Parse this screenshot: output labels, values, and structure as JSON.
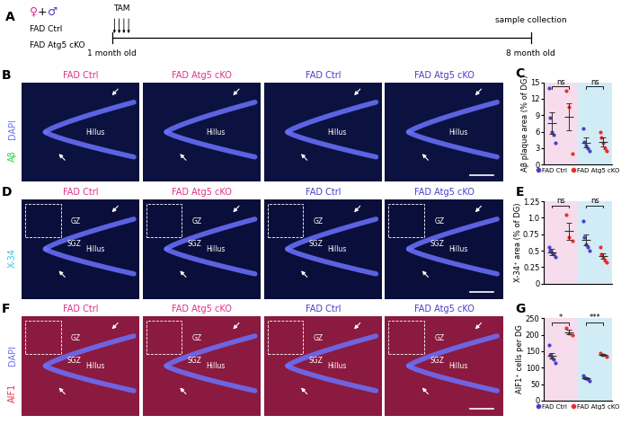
{
  "panel_a": {
    "letter": "A",
    "sexes": [
      {
        "text": "♀",
        "color": "#e0318a"
      },
      {
        "text": "+",
        "color": "#000000"
      },
      {
        "text": "♂",
        "color": "#4a3fc8"
      }
    ],
    "groups": [
      "FAD Ctrl",
      "FAD Atg5 cKO"
    ],
    "treatment": "TAM",
    "start": "1 month old",
    "end": "8 month old",
    "end_event": "sample collection"
  },
  "image_rows": [
    {
      "letter": "B",
      "background": "#0c1240",
      "stain": [
        {
          "text": "Aβ",
          "color": "#2fd04a"
        },
        {
          "text": "DAPI",
          "color": "#6a70f5"
        }
      ],
      "images": [
        {
          "title": "FAD Ctrl",
          "color": "#e0318a",
          "regions": [
            "Hillus"
          ]
        },
        {
          "title": "FAD Atg5 cKO",
          "color": "#e0318a",
          "regions": [
            "Hillus"
          ]
        },
        {
          "title": "FAD Ctrl",
          "color": "#4a3fc8",
          "regions": [
            "Hillus"
          ]
        },
        {
          "title": "FAD Atg5 cKO",
          "color": "#4a3fc8",
          "regions": [
            "Hillus"
          ]
        }
      ]
    },
    {
      "letter": "D",
      "background": "#0a0e3a",
      "stain": [
        {
          "text": "X-34",
          "color": "#33c8e8"
        }
      ],
      "images": [
        {
          "title": "FAD Ctrl",
          "color": "#e0318a",
          "regions": [
            "GZ",
            "SGZ",
            "Hillus"
          ]
        },
        {
          "title": "FAD Atg5 cKO",
          "color": "#e0318a",
          "regions": [
            "GZ",
            "SGZ",
            "Hillus"
          ]
        },
        {
          "title": "FAD Ctrl",
          "color": "#4a3fc8",
          "regions": [
            "GZ",
            "SGZ",
            "Hillus"
          ]
        },
        {
          "title": "FAD Atg5 cKO",
          "color": "#4a3fc8",
          "regions": [
            "GZ",
            "SGZ",
            "Hillus"
          ]
        }
      ]
    },
    {
      "letter": "F",
      "background": "#8a1a40",
      "stain": [
        {
          "text": "AIF1",
          "color": "#e8304a"
        },
        {
          "text": "DAPI",
          "color": "#6a70f5"
        }
      ],
      "images": [
        {
          "title": "FAD Ctrl",
          "color": "#e0318a",
          "regions": [
            "GZ",
            "SGZ",
            "Hillus"
          ]
        },
        {
          "title": "FAD Atg5 cKO",
          "color": "#e0318a",
          "regions": [
            "GZ",
            "SGZ",
            "Hillus"
          ]
        },
        {
          "title": "FAD Ctrl",
          "color": "#4a3fc8",
          "regions": [
            "GZ",
            "SGZ",
            "Hillus"
          ]
        },
        {
          "title": "FAD Atg5 cKO",
          "color": "#4a3fc8",
          "regions": [
            "GZ",
            "SGZ",
            "Hillus"
          ]
        }
      ]
    }
  ],
  "chart_data": [
    {
      "letter": "C",
      "type": "dot",
      "ylabel": "Aβ plaque area (% of DG)",
      "ylim": [
        0,
        15
      ],
      "yticks": [
        0,
        3,
        6,
        9,
        12,
        15
      ],
      "tick_labels": "y",
      "legend": "below",
      "series": [
        {
          "name": "FAD Ctrl",
          "color": "#4a3fc8"
        },
        {
          "name": "FAD Atg5 cKO",
          "color": "#e8302a"
        }
      ],
      "sections": [
        {
          "color": "#f6dcec",
          "values": [
            [
              14,
              8.5,
              6,
              5.5,
              4
            ],
            [
              13.5,
              10.5,
              2
            ]
          ],
          "mean": [
            7.6,
            8.7
          ],
          "sem": [
            2.0,
            2.4
          ],
          "significance": "ns"
        },
        {
          "color": "#d2ecf6",
          "values": [
            [
              6.5,
              4.2,
              3.5,
              3,
              2.5
            ],
            [
              6,
              5,
              4,
              3,
              2.5
            ]
          ],
          "mean": [
            4.0,
            4.1
          ],
          "sem": [
            0.9,
            0.8
          ],
          "significance": "ns"
        }
      ]
    },
    {
      "letter": "E",
      "type": "dot",
      "ylabel": "X-34⁺ area (% of DG)",
      "ylim": [
        0,
        1.25
      ],
      "yticks": [
        0,
        0.25,
        0.5,
        0.75,
        {
          "value": 1,
          "label": "1.0"
        },
        1.25
      ],
      "tick_labels": "y",
      "series": [
        {
          "name": "FAD Ctrl",
          "color": "#4a3fc8"
        },
        {
          "name": "FAD Atg5 cKO",
          "color": "#e8302a"
        }
      ],
      "sections": [
        {
          "color": "#f6dcec",
          "values": [
            [
              0.55,
              0.5,
              0.48,
              0.45,
              0.4
            ],
            [
              1.05,
              0.7,
              0.65
            ]
          ],
          "mean": [
            0.48,
            0.8
          ],
          "sem": [
            0.05,
            0.13
          ],
          "significance": "ns"
        },
        {
          "color": "#d2ecf6",
          "values": [
            [
              0.95,
              0.7,
              0.6,
              0.55,
              0.5
            ],
            [
              0.55,
              0.45,
              0.4,
              0.35,
              0.33
            ]
          ],
          "mean": [
            0.66,
            0.42
          ],
          "sem": [
            0.08,
            0.04
          ],
          "significance": "ns"
        }
      ]
    },
    {
      "letter": "G",
      "type": "dot",
      "ylabel": "AIF1⁺ cells per DG",
      "ylim": [
        0,
        250
      ],
      "yticks": [
        0,
        50,
        100,
        150,
        200,
        250
      ],
      "tick_labels": "y",
      "legend": "below",
      "series": [
        {
          "name": "FAD Ctrl",
          "color": "#4a3fc8"
        },
        {
          "name": "FAD Atg5 cKO",
          "color": "#e8302a"
        }
      ],
      "sections": [
        {
          "color": "#f6dcec",
          "values": [
            [
              170,
              140,
              130,
              125,
              115
            ],
            [
              220,
              205,
              200
            ]
          ],
          "mean": [
            136,
            208
          ],
          "sem": [
            9,
            6
          ],
          "significance": "*"
        },
        {
          "color": "#d2ecf6",
          "values": [
            [
              75,
              70,
              68,
              65,
              60
            ],
            [
              145,
              140,
              133
            ]
          ],
          "mean": [
            68,
            139
          ],
          "sem": [
            2.5,
            3.5
          ],
          "significance": "***"
        }
      ]
    }
  ]
}
